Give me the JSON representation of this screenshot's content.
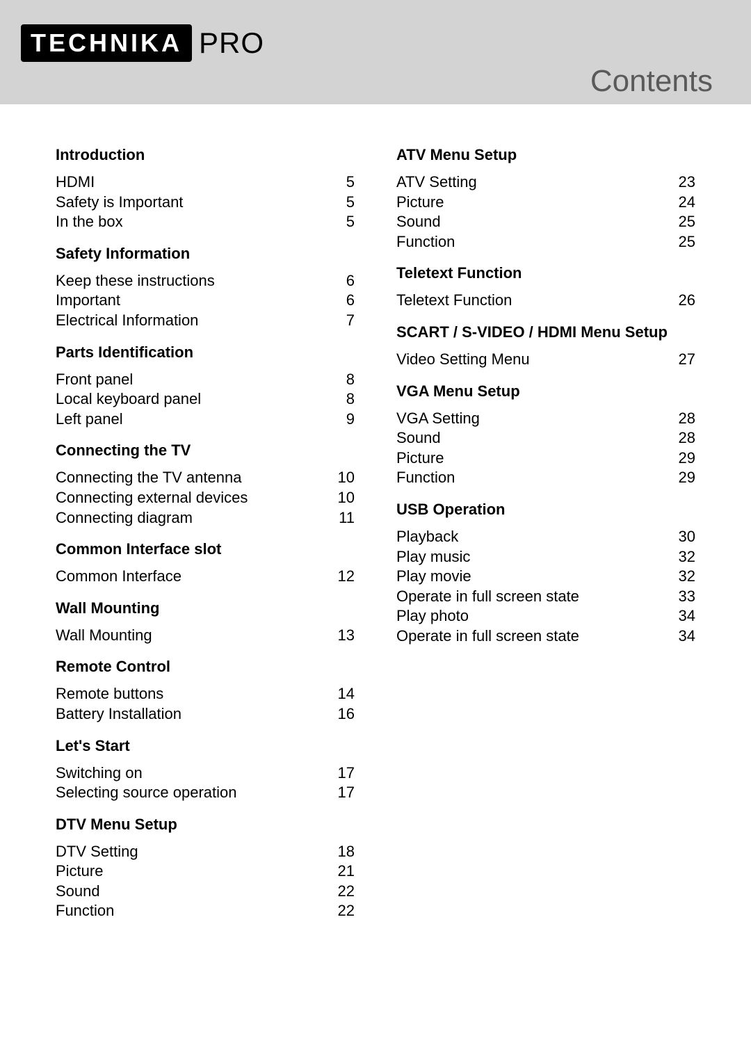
{
  "logo": {
    "brand": "TECHNIKA",
    "suffix": "PRO"
  },
  "page_title": "Contents",
  "colors": {
    "header_bg": "#d3d3d3",
    "logo_bg": "#000000",
    "logo_fg": "#ffffff",
    "title_color": "#5a5a5a",
    "text_color": "#000000",
    "page_bg": "#ffffff"
  },
  "typography": {
    "heading_fontsize": 22,
    "body_fontsize": 22,
    "title_fontsize": 44,
    "logo_fontsize": 36
  },
  "left_column": [
    {
      "heading": "Introduction",
      "items": [
        {
          "label": "HDMI",
          "page": "5"
        },
        {
          "label": "Safety is Important",
          "page": "5"
        },
        {
          "label": "In the box",
          "page": "5"
        }
      ]
    },
    {
      "heading": "Safety Information",
      "items": [
        {
          "label": "Keep these instructions",
          "page": "6"
        },
        {
          "label": "Important",
          "page": "6"
        },
        {
          "label": "Electrical  Information",
          "page": "7"
        }
      ]
    },
    {
      "heading": "Parts Identification",
      "items": [
        {
          "label": "Front panel",
          "page": "8"
        },
        {
          "label": "Local keyboard panel",
          "page": "8"
        },
        {
          "label": "Left panel",
          "page": "9"
        }
      ]
    },
    {
      "heading": "Connecting the TV",
      "items": [
        {
          "label": "Connecting the TV antenna",
          "page": "10"
        },
        {
          "label": "Connecting external devices",
          "page": "10"
        },
        {
          "label": "Connecting diagram",
          "page": "11"
        }
      ]
    },
    {
      "heading": "Common Interface slot",
      "items": [
        {
          "label": "Common Interface",
          "page": "12"
        }
      ]
    },
    {
      "heading": "Wall Mounting",
      "items": [
        {
          "label": "Wall Mounting",
          "page": "13"
        }
      ]
    },
    {
      "heading": "Remote Control",
      "items": [
        {
          "label": "Remote buttons",
          "page": "14"
        },
        {
          "label": "Battery Installation",
          "page": "16"
        }
      ]
    },
    {
      "heading": "Let's Start",
      "items": [
        {
          "label": "Switching on",
          "page": "17"
        },
        {
          "label": "Selecting source operation",
          "page": "17"
        }
      ]
    },
    {
      "heading": "DTV Menu Setup",
      "items": [
        {
          "label": "DTV Setting",
          "page": "18"
        },
        {
          "label": "Picture",
          "page": "21"
        },
        {
          "label": "Sound",
          "page": "22"
        },
        {
          "label": "Function",
          "page": "22"
        }
      ]
    }
  ],
  "right_column": [
    {
      "heading": "ATV Menu Setup",
      "items": [
        {
          "label": "ATV Setting",
          "page": "23"
        },
        {
          "label": "Picture",
          "page": "24"
        },
        {
          "label": "Sound",
          "page": "25"
        },
        {
          "label": "Function",
          "page": "25"
        }
      ]
    },
    {
      "heading": "Teletext Function",
      "items": [
        {
          "label": "Teletext Function",
          "page": "26"
        }
      ]
    },
    {
      "heading": "SCART / S-VIDEO / HDMI Menu Setup",
      "items": [
        {
          "label": "Video Setting Menu",
          "page": "27"
        }
      ]
    },
    {
      "heading": "VGA Menu Setup",
      "items": [
        {
          "label": "VGA Setting",
          "page": "28"
        },
        {
          "label": "Sound",
          "page": "28"
        },
        {
          "label": "Picture",
          "page": "29"
        },
        {
          "label": "Function",
          "page": "29"
        }
      ]
    },
    {
      "heading": "USB Operation",
      "items": [
        {
          "label": "Playback",
          "page": "30"
        },
        {
          "label": "Play music",
          "page": "32"
        },
        {
          "label": "Play movie",
          "page": "32"
        },
        {
          "label": "Operate in full screen state",
          "page": "33"
        },
        {
          "label": "Play photo",
          "page": "34"
        },
        {
          "label": "Operate in full screen state",
          "page": "34"
        }
      ]
    }
  ]
}
